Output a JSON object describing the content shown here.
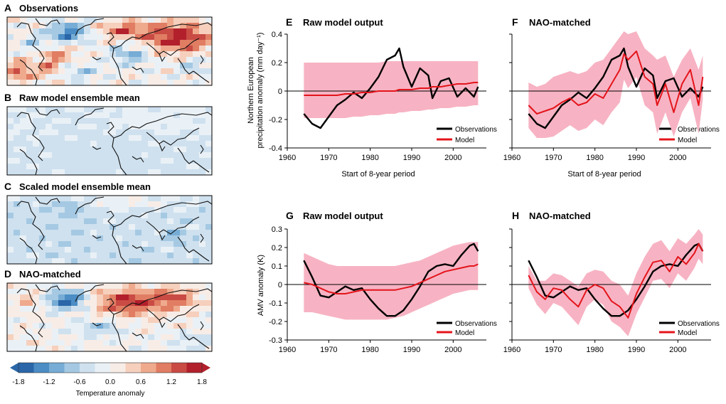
{
  "colors": {
    "observations": "#000000",
    "model": "#e4141b",
    "spread": "#f7b3c3",
    "zero_line": "#000000",
    "map_border": "#000000",
    "coast": "#111111"
  },
  "maps": [
    {
      "letter": "A",
      "title": "Observations",
      "style": "obs"
    },
    {
      "letter": "B",
      "title": "Raw model ensemble mean",
      "style": "raw"
    },
    {
      "letter": "C",
      "title": "Scaled model ensemble mean",
      "style": "scaled"
    },
    {
      "letter": "D",
      "title": "NAO-matched",
      "style": "nao"
    }
  ],
  "colorbar": {
    "ticks": [
      "-1.8",
      "-1.2",
      "-0.6",
      "0.0",
      "0.6",
      "1.2",
      "1.8"
    ],
    "label": "Temperature anomaly",
    "colors": [
      "#2a66a8",
      "#4b8dc4",
      "#76acd5",
      "#a5c9e3",
      "#cfe1ef",
      "#eaf1f6",
      "#f8ece6",
      "#f6d0bd",
      "#efaa8d",
      "#e07d63",
      "#c94b44",
      "#b2202b"
    ]
  },
  "chart_data": [
    {
      "id": "E",
      "type": "line",
      "title": "Raw model output",
      "xlabel": "Start of 8-year period",
      "ylabel_lines": [
        "Northern European",
        "precipitation anomaly (mm day⁻¹)"
      ],
      "xlim": [
        1960,
        2008
      ],
      "ylim": [
        -0.4,
        0.4
      ],
      "xticks": [
        1960,
        1970,
        1980,
        1990,
        2000
      ],
      "yticks": [
        -0.4,
        -0.2,
        0,
        0.2,
        0.4
      ],
      "ytick_labels": [
        "-0.4",
        "-0.2",
        "0",
        "0.2",
        "0.4"
      ],
      "legend": [
        "Observations",
        "Model"
      ],
      "x": [
        1964,
        1966,
        1968,
        1970,
        1972,
        1974,
        1976,
        1978,
        1980,
        1982,
        1984,
        1986,
        1987,
        1988,
        1990,
        1992,
        1994,
        1995,
        1997,
        1999,
        2001,
        2003,
        2005,
        2006
      ],
      "series": [
        {
          "name": "Observations",
          "values": [
            -0.16,
            -0.23,
            -0.26,
            -0.18,
            -0.1,
            -0.06,
            -0.01,
            -0.05,
            0.02,
            0.1,
            0.22,
            0.25,
            0.3,
            0.17,
            0.03,
            0.16,
            0.11,
            -0.05,
            0.07,
            0.09,
            -0.04,
            0.02,
            -0.04,
            0.03
          ]
        },
        {
          "name": "Model",
          "values": [
            -0.03,
            -0.03,
            -0.03,
            -0.03,
            -0.03,
            -0.02,
            -0.02,
            -0.01,
            -0.01,
            0.0,
            0.0,
            0.0,
            0.01,
            0.01,
            0.01,
            0.02,
            0.02,
            0.03,
            0.03,
            0.04,
            0.05,
            0.05,
            0.06,
            0.06
          ]
        }
      ],
      "band_upper": [
        0.2,
        0.2,
        0.2,
        0.2,
        0.2,
        0.2,
        0.2,
        0.2,
        0.2,
        0.2,
        0.21,
        0.21,
        0.21,
        0.21,
        0.21,
        0.21,
        0.21,
        0.21,
        0.21,
        0.21,
        0.21,
        0.21,
        0.21,
        0.21
      ],
      "band_lower": [
        -0.19,
        -0.19,
        -0.19,
        -0.19,
        -0.19,
        -0.19,
        -0.18,
        -0.18,
        -0.17,
        -0.17,
        -0.16,
        -0.16,
        -0.15,
        -0.15,
        -0.14,
        -0.14,
        -0.13,
        -0.13,
        -0.12,
        -0.12,
        -0.11,
        -0.11,
        -0.1,
        -0.1
      ]
    },
    {
      "id": "F",
      "type": "line",
      "title": "NAO-matched",
      "xlabel": "Start of 8-year period",
      "xlim": [
        1960,
        2008
      ],
      "ylim": [
        -0.4,
        0.4
      ],
      "xticks": [
        1960,
        1970,
        1980,
        1990,
        2000
      ],
      "yticks": [
        -0.4,
        -0.2,
        0,
        0.2,
        0.4
      ],
      "legend": [
        "Observations",
        "Model"
      ],
      "x": [
        1964,
        1966,
        1968,
        1970,
        1972,
        1974,
        1976,
        1978,
        1980,
        1982,
        1984,
        1986,
        1987,
        1988,
        1990,
        1992,
        1994,
        1995,
        1997,
        1999,
        2001,
        2003,
        2005,
        2006
      ],
      "series": [
        {
          "name": "Observations",
          "values": [
            -0.16,
            -0.23,
            -0.26,
            -0.18,
            -0.1,
            -0.06,
            -0.01,
            -0.05,
            0.02,
            0.1,
            0.22,
            0.25,
            0.3,
            0.17,
            0.03,
            0.16,
            0.11,
            -0.05,
            0.07,
            0.09,
            -0.04,
            0.02,
            -0.04,
            0.03
          ]
        },
        {
          "name": "Model",
          "values": [
            -0.1,
            -0.16,
            -0.14,
            -0.12,
            -0.08,
            -0.05,
            -0.1,
            -0.08,
            -0.02,
            -0.05,
            0.05,
            0.15,
            0.26,
            0.22,
            0.28,
            0.1,
            0.05,
            -0.1,
            0.05,
            -0.15,
            0.05,
            0.15,
            -0.1,
            0.1
          ]
        }
      ],
      "band_upper": [
        0.06,
        0.03,
        0.05,
        0.1,
        0.12,
        0.14,
        0.12,
        0.14,
        0.2,
        0.22,
        0.3,
        0.38,
        0.42,
        0.4,
        0.42,
        0.3,
        0.25,
        0.22,
        0.25,
        0.1,
        0.22,
        0.3,
        0.15,
        0.25
      ],
      "band_lower": [
        -0.26,
        -0.33,
        -0.33,
        -0.32,
        -0.28,
        -0.24,
        -0.28,
        -0.26,
        -0.2,
        -0.24,
        -0.15,
        -0.08,
        0.08,
        0.02,
        0.1,
        -0.1,
        -0.15,
        -0.3,
        -0.15,
        -0.32,
        -0.15,
        -0.05,
        -0.3,
        -0.06
      ]
    },
    {
      "id": "G",
      "type": "line",
      "title": "Raw model output",
      "xlabel": "",
      "ylabel_lines": [
        "AMV anomaly (K)"
      ],
      "xlim": [
        1960,
        2008
      ],
      "ylim": [
        -0.3,
        0.3
      ],
      "xticks": [
        1960,
        1970,
        1980,
        1990,
        2000
      ],
      "yticks": [
        -0.3,
        -0.2,
        -0.1,
        0,
        0.1,
        0.2,
        0.3
      ],
      "ytick_labels": [
        "-0.3",
        "-0.2",
        "-0.1",
        "0",
        "0.1",
        "0.2",
        "0.3"
      ],
      "legend": [
        "Observations",
        "Model"
      ],
      "x": [
        1964,
        1966,
        1968,
        1970,
        1972,
        1974,
        1976,
        1978,
        1980,
        1982,
        1984,
        1986,
        1988,
        1990,
        1992,
        1994,
        1996,
        1998,
        2000,
        2002,
        2004,
        2005,
        2006
      ],
      "series": [
        {
          "name": "Observations",
          "values": [
            0.13,
            0.04,
            -0.06,
            -0.07,
            -0.04,
            -0.01,
            -0.03,
            -0.02,
            -0.08,
            -0.13,
            -0.17,
            -0.17,
            -0.14,
            -0.08,
            -0.01,
            0.07,
            0.1,
            0.11,
            0.1,
            0.16,
            0.21,
            0.22,
            0.18
          ]
        },
        {
          "name": "Model",
          "values": [
            0.01,
            0.0,
            -0.02,
            -0.04,
            -0.05,
            -0.05,
            -0.04,
            -0.03,
            -0.03,
            -0.03,
            -0.03,
            -0.03,
            -0.02,
            -0.01,
            0.01,
            0.03,
            0.05,
            0.07,
            0.08,
            0.09,
            0.1,
            0.1,
            0.11
          ]
        }
      ],
      "band_upper": [
        0.17,
        0.15,
        0.13,
        0.11,
        0.1,
        0.1,
        0.1,
        0.1,
        0.1,
        0.1,
        0.1,
        0.1,
        0.11,
        0.12,
        0.13,
        0.15,
        0.17,
        0.19,
        0.21,
        0.22,
        0.23,
        0.23,
        0.23
      ],
      "band_lower": [
        -0.15,
        -0.15,
        -0.16,
        -0.17,
        -0.18,
        -0.19,
        -0.19,
        -0.19,
        -0.19,
        -0.19,
        -0.19,
        -0.18,
        -0.17,
        -0.15,
        -0.13,
        -0.11,
        -0.09,
        -0.07,
        -0.05,
        -0.04,
        -0.03,
        -0.03,
        -0.03
      ]
    },
    {
      "id": "H",
      "type": "line",
      "title": "NAO-matched",
      "xlabel": "",
      "xlim": [
        1960,
        2008
      ],
      "ylim": [
        -0.3,
        0.3
      ],
      "xticks": [
        1960,
        1970,
        1980,
        1990,
        2000
      ],
      "yticks": [
        -0.3,
        -0.2,
        -0.1,
        0,
        0.1,
        0.2,
        0.3
      ],
      "legend": [
        "Observations",
        "Model"
      ],
      "x": [
        1964,
        1966,
        1968,
        1970,
        1972,
        1974,
        1976,
        1978,
        1980,
        1982,
        1984,
        1986,
        1988,
        1990,
        1992,
        1994,
        1996,
        1998,
        2000,
        2002,
        2004,
        2005,
        2006
      ],
      "series": [
        {
          "name": "Observations",
          "values": [
            0.13,
            0.04,
            -0.06,
            -0.07,
            -0.04,
            -0.01,
            -0.03,
            -0.02,
            -0.08,
            -0.13,
            -0.17,
            -0.17,
            -0.14,
            -0.08,
            -0.01,
            0.07,
            0.1,
            0.11,
            0.1,
            0.16,
            0.21,
            0.22,
            0.18
          ]
        },
        {
          "name": "Model",
          "values": [
            0.05,
            -0.04,
            -0.08,
            -0.02,
            -0.03,
            -0.08,
            -0.12,
            -0.03,
            0.0,
            -0.02,
            -0.09,
            -0.12,
            -0.18,
            -0.05,
            0.04,
            0.12,
            0.13,
            0.07,
            0.15,
            0.11,
            0.17,
            0.22,
            0.18
          ]
        }
      ],
      "band_upper": [
        0.1,
        0.02,
        0.02,
        0.06,
        0.05,
        0.02,
        -0.01,
        0.06,
        0.08,
        0.07,
        0.02,
        0.0,
        -0.06,
        0.06,
        0.15,
        0.22,
        0.24,
        0.18,
        0.25,
        0.22,
        0.27,
        0.3,
        0.27
      ],
      "band_lower": [
        -0.02,
        -0.11,
        -0.16,
        -0.1,
        -0.12,
        -0.17,
        -0.22,
        -0.12,
        -0.08,
        -0.11,
        -0.2,
        -0.23,
        -0.28,
        -0.16,
        -0.07,
        0.02,
        0.03,
        -0.02,
        0.06,
        0.02,
        0.09,
        0.14,
        0.11
      ]
    }
  ]
}
